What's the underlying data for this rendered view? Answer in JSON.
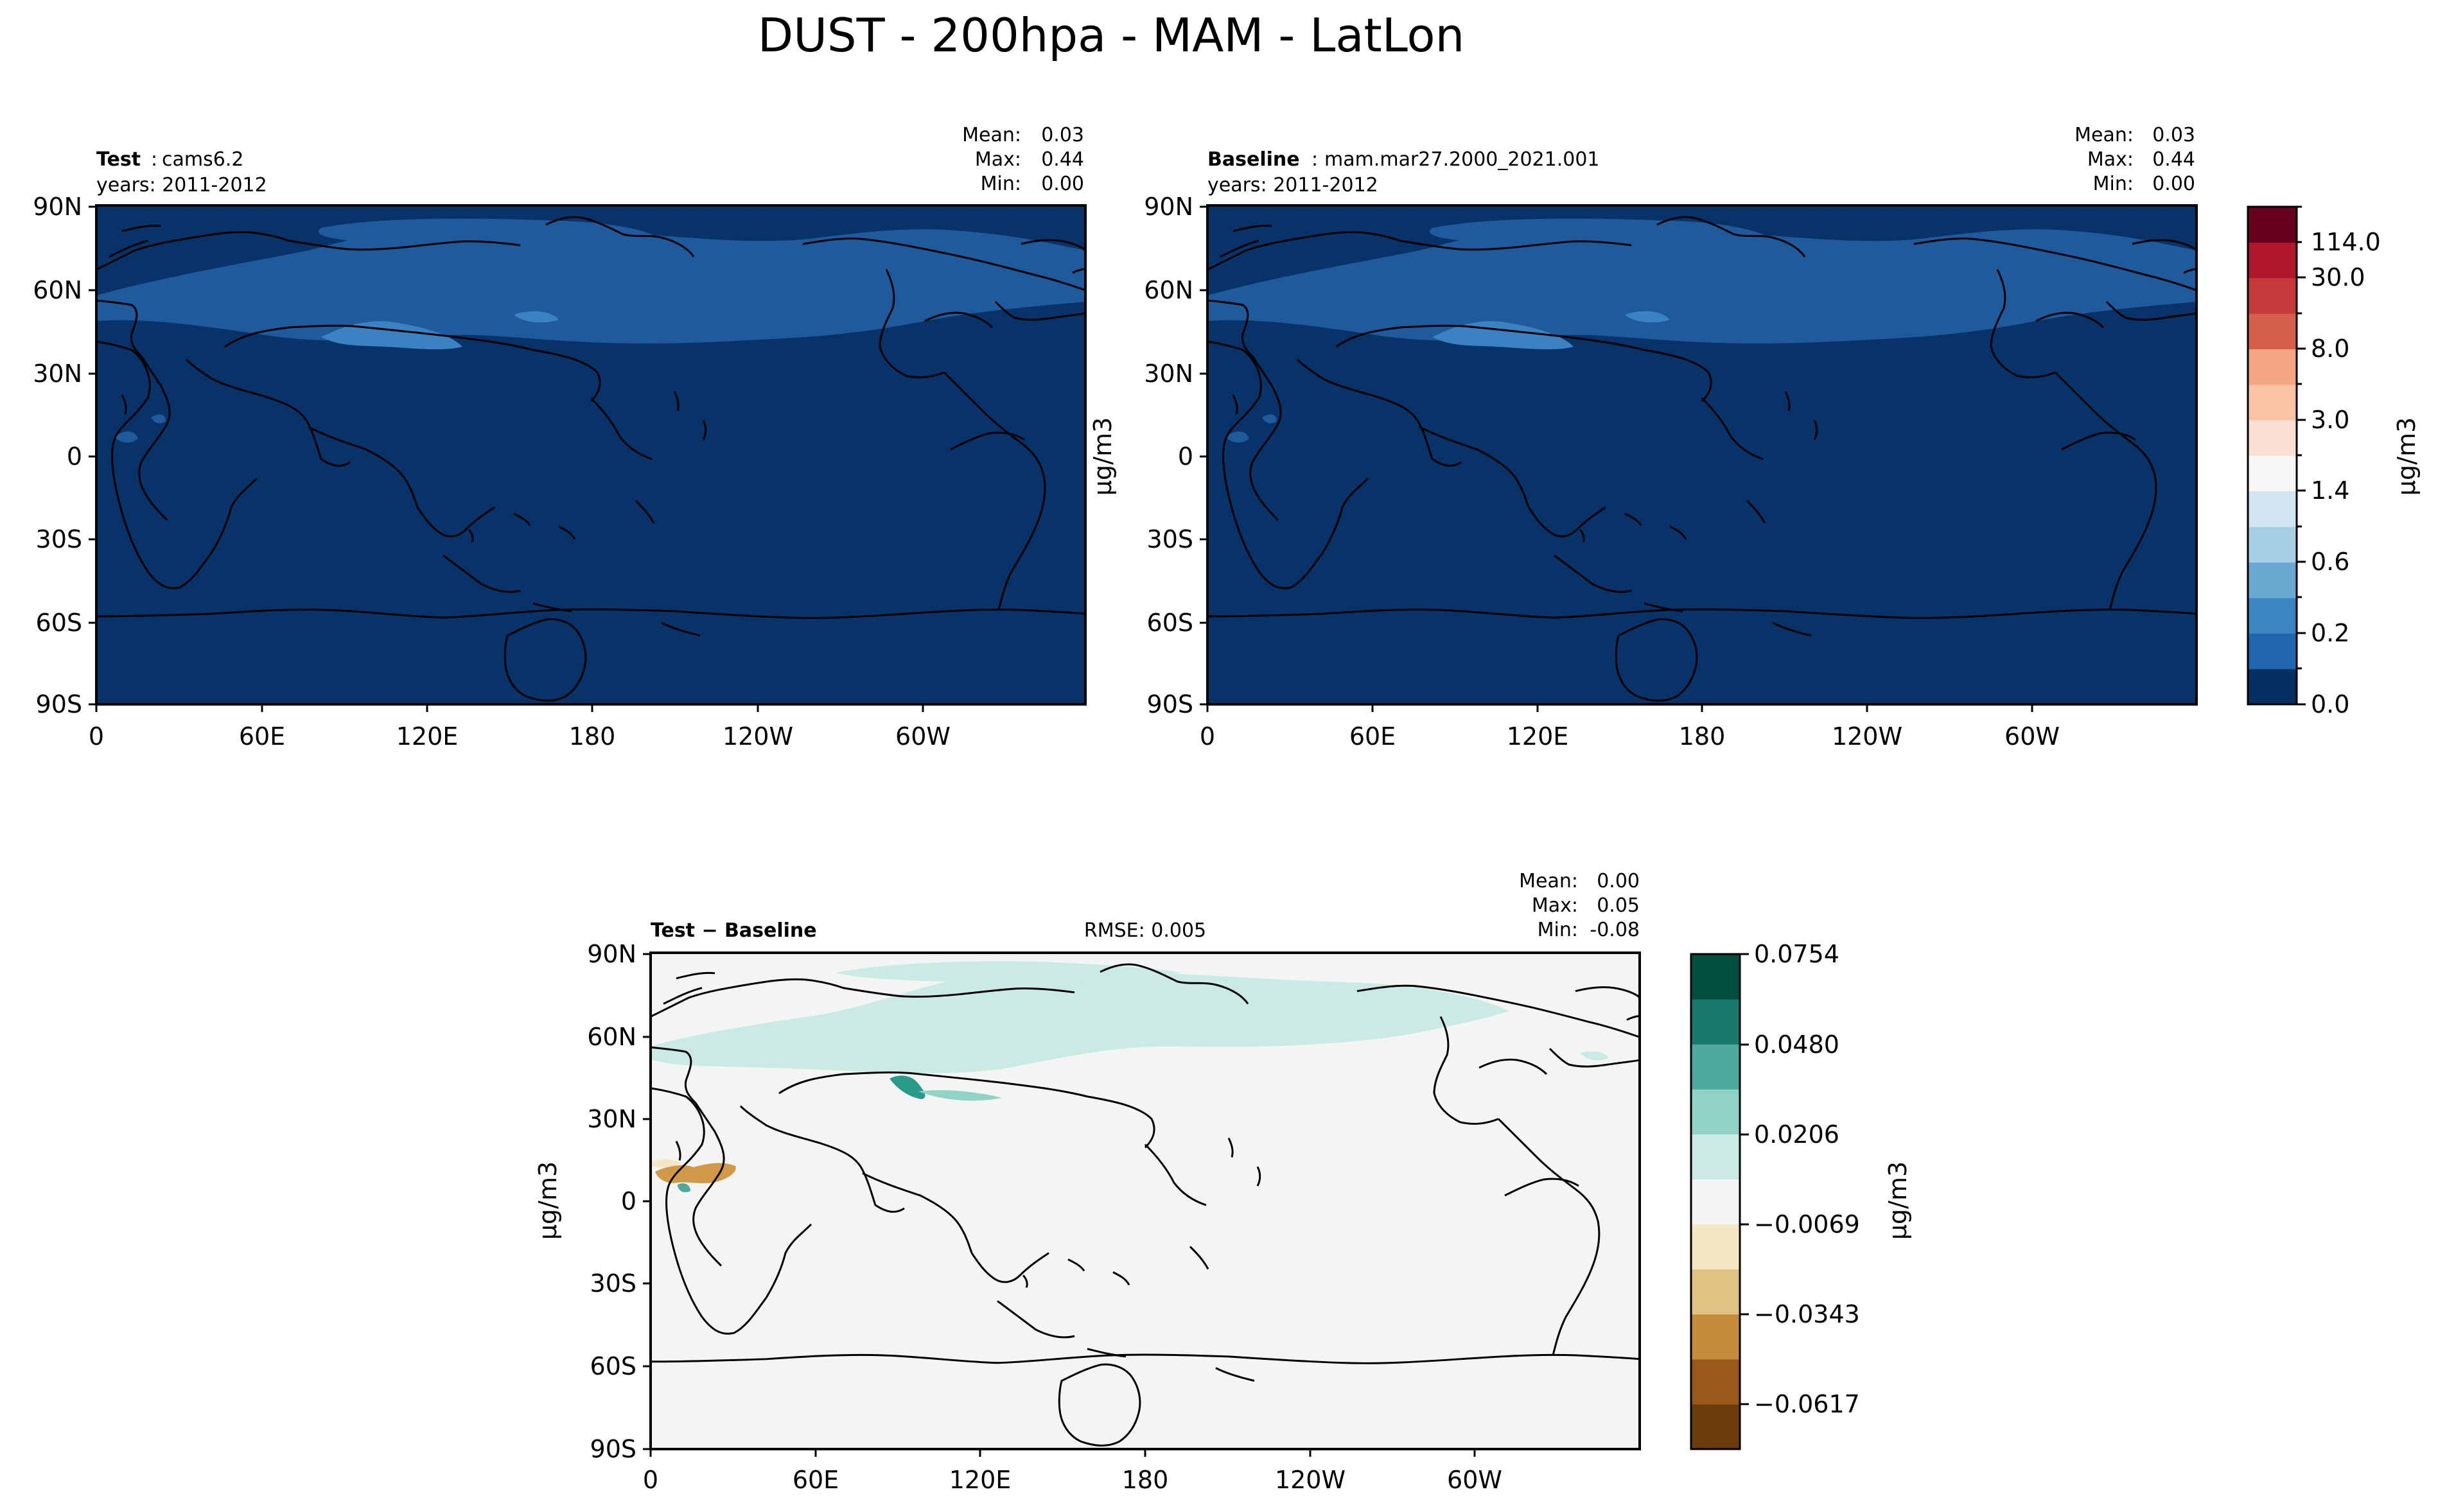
{
  "figure_title": "DUST - 200hpa - MAM - LatLon",
  "chart_data": [
    {
      "type": "heatmap",
      "panel": "test",
      "label_bold": "Test",
      "label_sep": ":",
      "label_value": "cams6.2",
      "years": "years: 2011-2012",
      "stats": [
        {
          "label": "Mean:",
          "value": "0.03"
        },
        {
          "label": "Max:",
          "value": "0.44"
        },
        {
          "label": "Min:",
          "value": "0.00"
        }
      ],
      "lat_ticks": [
        "90N",
        "60N",
        "30N",
        "0",
        "30S",
        "60S",
        "90S"
      ],
      "lon_ticks": [
        "0",
        "60E",
        "120E",
        "180",
        "120W",
        "60W"
      ],
      "xlim": [
        0,
        360
      ],
      "ylim": [
        -90,
        90
      ],
      "field": "dust concentration (μg/m3)"
    },
    {
      "type": "heatmap",
      "panel": "baseline",
      "label_bold": "Baseline",
      "label_sep": ":",
      "label_value": "mam.mar27.2000_2021.001",
      "years": "years: 2011-2012",
      "stats": [
        {
          "label": "Mean:",
          "value": "0.03"
        },
        {
          "label": "Max:",
          "value": "0.44"
        },
        {
          "label": "Min:",
          "value": "0.00"
        }
      ],
      "ylabel": "μg/m3",
      "lat_ticks": [
        "90N",
        "60N",
        "30N",
        "0",
        "30S",
        "60S",
        "90S"
      ],
      "lon_ticks": [
        "0",
        "60E",
        "120E",
        "180",
        "120W",
        "60W"
      ],
      "xlim": [
        0,
        360
      ],
      "ylim": [
        -90,
        90
      ]
    },
    {
      "type": "heatmap",
      "panel": "difference",
      "label_bold": "Test − Baseline",
      "rmse": "RMSE: 0.005",
      "stats": [
        {
          "label": "Mean:",
          "value": "0.00"
        },
        {
          "label": "Max:",
          "value": "0.05"
        },
        {
          "label": "Min:",
          "value": "-0.08"
        }
      ],
      "ylabel": "μg/m3",
      "lat_ticks": [
        "90N",
        "60N",
        "30N",
        "0",
        "30S",
        "60S",
        "90S"
      ],
      "lon_ticks": [
        "0",
        "60E",
        "120E",
        "180",
        "120W",
        "60W"
      ],
      "xlim": [
        0,
        360
      ],
      "ylim": [
        -90,
        90
      ]
    }
  ],
  "colorbars": {
    "main": {
      "label": "μg/m3",
      "tick_labels": [
        "0.0",
        "0.2",
        "0.6",
        "1.4",
        "3.0",
        "8.0",
        "30.0",
        "114.0"
      ],
      "colors": [
        "#053061",
        "#2166ac",
        "#3a86c1",
        "#6aaad2",
        "#a7cfe4",
        "#d1e5f0",
        "#f7f7f7",
        "#f9e0d2",
        "#fbc3a5",
        "#f4a582",
        "#d6604d",
        "#c7383a",
        "#b2182b",
        "#67001f"
      ]
    },
    "diff": {
      "label": "μg/m3",
      "tick_labels": [
        "−0.0617",
        "−0.0343",
        "−0.0069",
        "0.0206",
        "0.0480",
        "0.0754"
      ],
      "colors": [
        "#6a3d0b",
        "#99591a",
        "#c68c3d",
        "#e0c383",
        "#f5e7c4",
        "#f4f5f4",
        "#c9ebe4",
        "#8fd3c5",
        "#4ea89c",
        "#177a6d",
        "#01503f"
      ]
    }
  },
  "colors": {
    "ocean_dark": "#083369",
    "dust_mid": "#1f5a9c",
    "dust_light": "#3a82c2",
    "diff_bg": "#f3f5f4",
    "diff_pos": "#c9ebe4",
    "diff_pos_strong": "#2a9a8a",
    "diff_neg": "#d19946"
  }
}
